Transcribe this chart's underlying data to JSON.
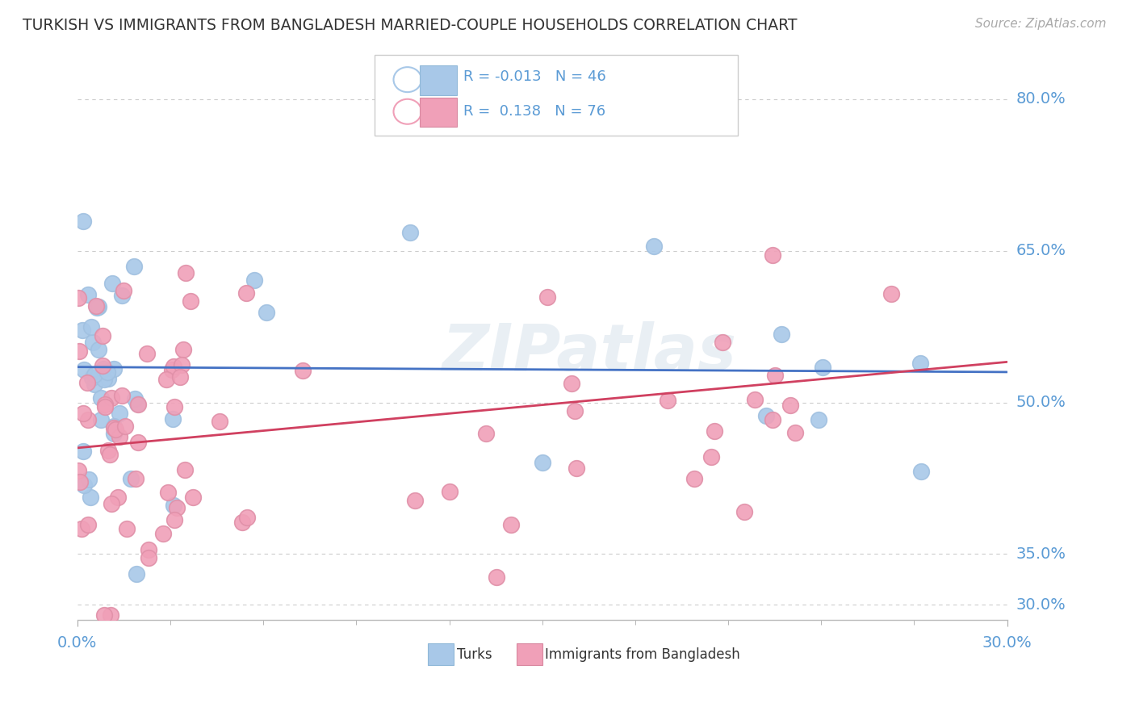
{
  "title": "TURKISH VS IMMIGRANTS FROM BANGLADESH MARRIED-COUPLE HOUSEHOLDS CORRELATION CHART",
  "source": "Source: ZipAtlas.com",
  "xmin": 0.0,
  "xmax": 0.3,
  "ymin": 0.285,
  "ymax": 0.835,
  "ytick_vals": [
    0.3,
    0.35,
    0.5,
    0.65,
    0.8
  ],
  "ytick_labels": [
    "30.0%",
    "35.0%",
    "50.0%",
    "65.0%",
    "80.0%"
  ],
  "r1": -0.013,
  "n1": 46,
  "r2": 0.138,
  "n2": 76,
  "color_blue": "#A8C8E8",
  "color_pink": "#F0A0B8",
  "color_blue_line": "#4472C4",
  "color_pink_line": "#D04060",
  "watermark": "ZIPatlas",
  "grid_color": "#CCCCCC",
  "title_color": "#333333",
  "axis_label_color": "#5B9BD5",
  "legend_label1": "Turks",
  "legend_label2": "Immigrants from Bangladesh",
  "blue_line_y_at_0": 0.535,
  "blue_line_y_at_30": 0.53,
  "pink_line_y_at_0": 0.455,
  "pink_line_y_at_30": 0.54
}
